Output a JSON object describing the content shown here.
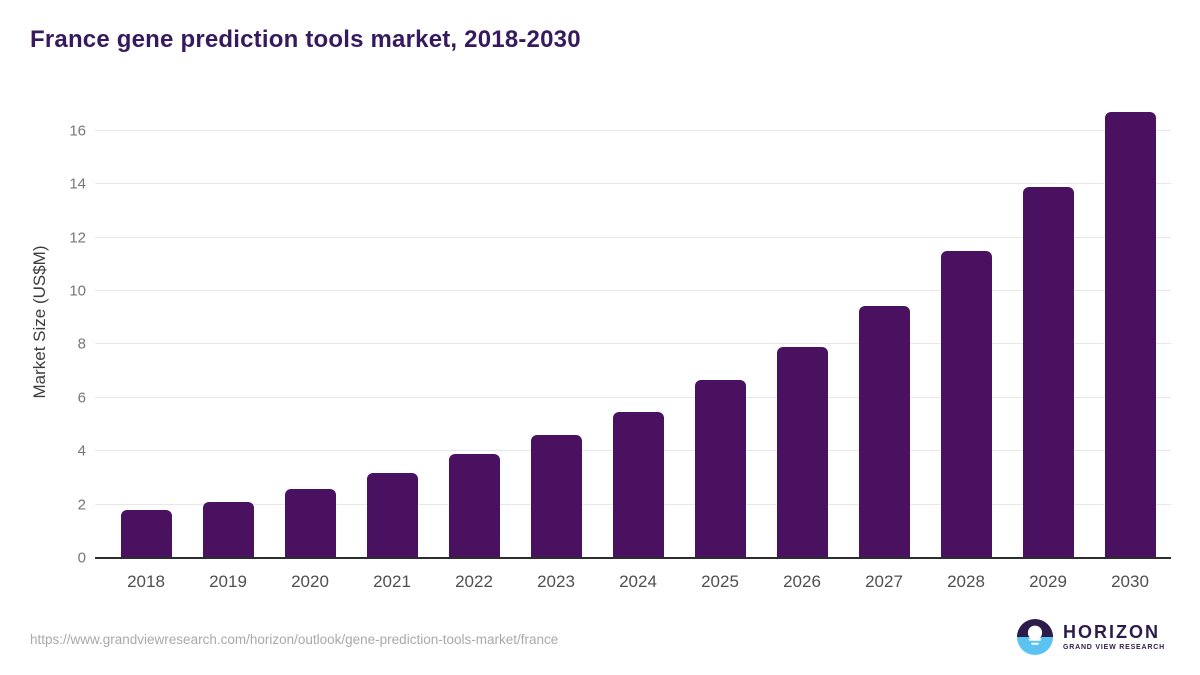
{
  "title": "France gene prediction tools market, 2018-2030",
  "source_url": "https://www.grandviewresearch.com/horizon/outlook/gene-prediction-tools-market/france",
  "branding": {
    "wordmark": "HORIZON",
    "subtitle": "GRAND VIEW RESEARCH"
  },
  "colors": {
    "bar": "#4a1161",
    "title_text": "#371a5e",
    "axis_line": "#2d2d2d",
    "gridline": "#e7e7e7",
    "tick_text": "#767676",
    "xlabel_text": "#4f4f4f",
    "ylabel_text": "#3d3d3d",
    "url_text": "#a9a9a9",
    "logo_purple": "#2d1b49",
    "logo_blue": "#5bc3f0"
  },
  "chart_data": {
    "type": "bar",
    "title": "France gene prediction tools market, 2018-2030",
    "categories": [
      "2018",
      "2019",
      "2020",
      "2021",
      "2022",
      "2023",
      "2024",
      "2025",
      "2026",
      "2027",
      "2028",
      "2029",
      "2030"
    ],
    "values": [
      1.8,
      2.1,
      2.6,
      3.2,
      3.9,
      4.6,
      5.45,
      6.65,
      7.9,
      9.45,
      11.5,
      13.9,
      16.7
    ],
    "xlabel": "",
    "ylabel": "Market Size (US$M)",
    "ylim": [
      0,
      17
    ],
    "yticks": [
      0,
      2,
      4,
      6,
      8,
      10,
      12,
      14,
      16
    ],
    "grid": true,
    "legend": false,
    "bar_color": "#4a1161"
  }
}
